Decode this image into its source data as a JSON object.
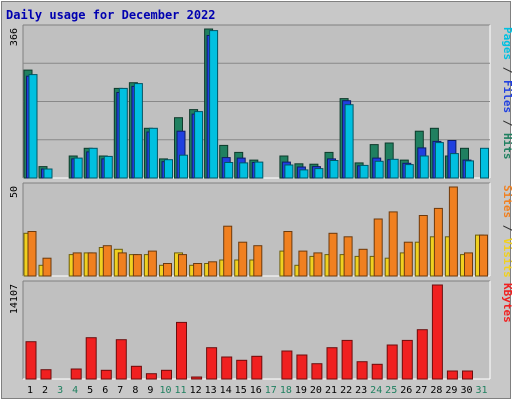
{
  "chart_data": {
    "type": "bar",
    "title": "Daily usage for December 2022",
    "days": [
      "1",
      "2",
      "3",
      "4",
      "5",
      "6",
      "7",
      "8",
      "9",
      "10",
      "11",
      "12",
      "13",
      "14",
      "15",
      "16",
      "17",
      "18",
      "19",
      "20",
      "21",
      "22",
      "23",
      "24",
      "25",
      "26",
      "27",
      "28",
      "29",
      "30",
      "31"
    ],
    "weekend_days": [
      "3",
      "4",
      "10",
      "11",
      "17",
      "18",
      "24",
      "25",
      "31"
    ],
    "panels": [
      {
        "id": "top",
        "max_label": "366",
        "ymax": 366,
        "legend": [
          {
            "text": "Pages",
            "color": "#00c0e0"
          },
          {
            "text": " / ",
            "color": "#303030"
          },
          {
            "text": "Files",
            "color": "#2040e0"
          },
          {
            "text": " / ",
            "color": "#303030"
          },
          {
            "text": "Hits",
            "color": "#208060"
          }
        ],
        "series": [
          {
            "name": "Hits",
            "color": "#208060",
            "values": [
              265,
              28,
              0,
              54,
              73,
              54,
              220,
              234,
              122,
              47,
              148,
              168,
              366,
              80,
              63,
              44,
              0,
              54,
              35,
              34,
              63,
              195,
              37,
              82,
              86,
              44,
              115,
              122,
              54,
              73,
              0
            ]
          },
          {
            "name": "Files",
            "color": "#2040e0",
            "values": [
              250,
              22,
              0,
              47,
              64,
              47,
              210,
              225,
              113,
              40,
              115,
              157,
              350,
              50,
              49,
              38,
              0,
              39,
              27,
              28,
              47,
              190,
              30,
              49,
              45,
              36,
              74,
              90,
              92,
              44,
              0
            ],
            "dual_values": [
              0,
              0,
              0,
              0,
              0,
              0,
              0,
              98,
              0,
              0,
              0,
              0,
              0,
              0,
              0,
              0,
              0,
              0,
              0,
              0,
              0,
              0,
              0,
              0,
              0,
              0,
              0,
              0,
              0,
              0,
              0
            ]
          },
          {
            "name": "Pages",
            "color": "#00c0e0",
            "values": [
              254,
              22,
              0,
              49,
              73,
              53,
              220,
              232,
              122,
              45,
              56,
              163,
              362,
              38,
              37,
              39,
              0,
              32,
              20,
              23,
              43,
              180,
              31,
              41,
              46,
              33,
              54,
              87,
              60,
              42,
              73
            ]
          }
        ]
      },
      {
        "id": "middle",
        "max_label": "50",
        "ymax": 50,
        "legend": [
          {
            "text": "Sites",
            "color": "#f08020"
          },
          {
            "text": " / ",
            "color": "#303030"
          },
          {
            "text": "Visits",
            "color": "#f0d020"
          }
        ],
        "series": [
          {
            "name": "Visits",
            "color": "#f0d020",
            "values": [
              24,
              6,
              0,
              12,
              13,
              16,
              15,
              12,
              12,
              6,
              13,
              6,
              7,
              9,
              9,
              9,
              0,
              14,
              6,
              11,
              12,
              12,
              11,
              11,
              10,
              13,
              19,
              22,
              22,
              12,
              23
            ]
          },
          {
            "name": "Sites",
            "color": "#f08020",
            "values": [
              25,
              10,
              0,
              13,
              13,
              17,
              13,
              12,
              14,
              7,
              12,
              7,
              8,
              28,
              19,
              17,
              0,
              25,
              14,
              13,
              24,
              22,
              15,
              32,
              36,
              19,
              34,
              38,
              50,
              13,
              23
            ]
          }
        ]
      },
      {
        "id": "bottom",
        "max_label": "14107",
        "ymax": 14107,
        "legend": [
          {
            "text": "KBytes",
            "color": "#f02020"
          }
        ],
        "series": [
          {
            "name": "KBytes",
            "color": "#f02020",
            "values": [
              5600,
              1400,
              0,
              1500,
              6200,
              1300,
              5900,
              1900,
              800,
              1300,
              8500,
              300,
              4700,
              3300,
              2800,
              3400,
              0,
              4200,
              3600,
              2300,
              4700,
              5800,
              2600,
              2200,
              5100,
              5800,
              7400,
              14107,
              1200,
              1200,
              0
            ]
          }
        ]
      }
    ]
  }
}
